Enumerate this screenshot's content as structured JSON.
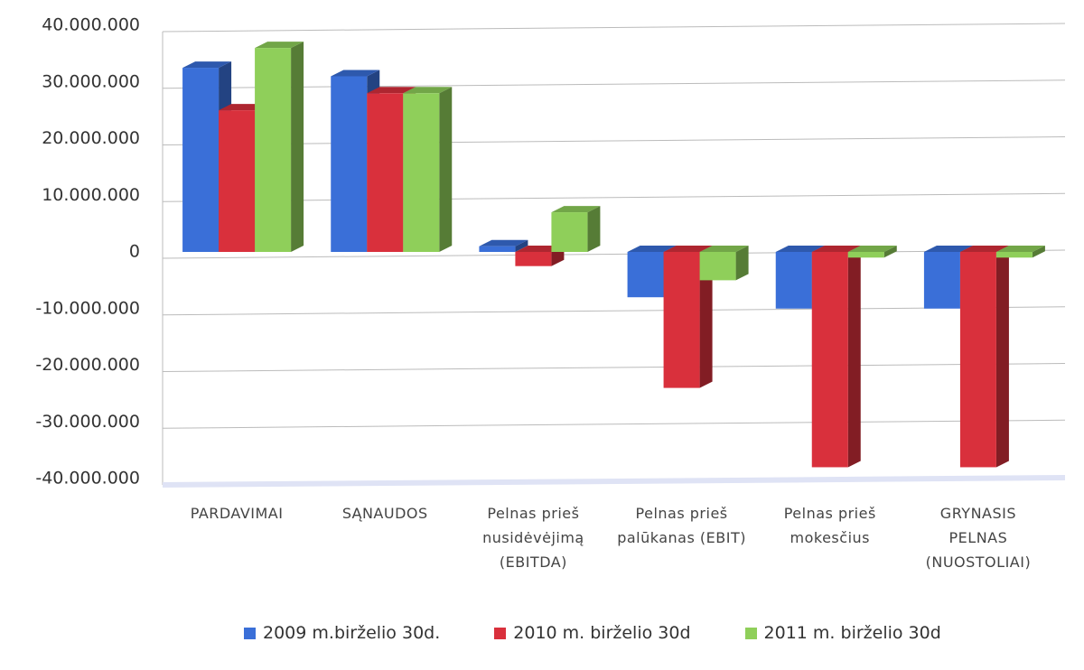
{
  "chart_data": {
    "type": "bar3d",
    "categories": [
      "PARDAVIMAI",
      "SĄNAUDOS",
      "Pelnas prieš nusidėvėjimą (EBITDA)",
      "Pelnas prieš palūkanas (EBIT)",
      "Pelnas prieš mokesčius",
      "GRYNASIS PELNAS (NUOSTOLIAI)"
    ],
    "series": [
      {
        "name": "2009 m.birželio 30d.",
        "color": "#3a6fd8",
        "values": [
          32500000,
          31000000,
          1000000,
          -8000000,
          -10000000,
          -10000000
        ]
      },
      {
        "name": "2010 m. birželio 30d",
        "color": "#d9303c",
        "values": [
          25000000,
          28000000,
          -2500000,
          -24000000,
          -38000000,
          -38000000
        ]
      },
      {
        "name": "2011 m. birželio 30d",
        "color": "#8fcf5a",
        "values": [
          36000000,
          28000000,
          7000000,
          -5000000,
          -1000000,
          -1000000
        ]
      }
    ],
    "ylim": [
      -40000000,
      40000000
    ],
    "yticks": [
      {
        "value": -40000000,
        "label": "-40.000.000"
      },
      {
        "value": -30000000,
        "label": "-30.000.000"
      },
      {
        "value": -20000000,
        "label": "-20.000.000"
      },
      {
        "value": -10000000,
        "label": "-10.000.000"
      },
      0,
      {
        "value": 10000000,
        "label": "10.000.000"
      },
      {
        "value": 20000000,
        "label": "20.000.000"
      },
      {
        "value": 30000000,
        "label": "30.000.000"
      },
      {
        "value": 40000000,
        "label": "40.000.000"
      }
    ],
    "grid": true,
    "legend": "bottom"
  }
}
